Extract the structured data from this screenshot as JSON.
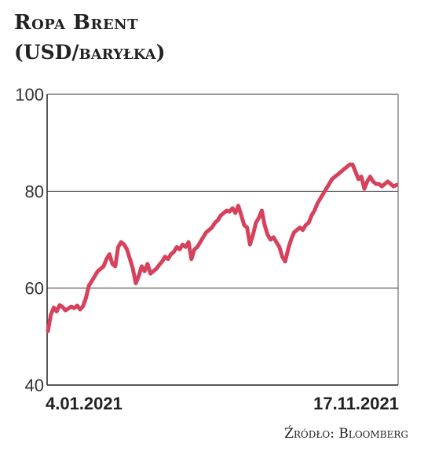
{
  "chart_data": {
    "type": "line",
    "title": "Ropa Brent",
    "subtitle": "(USD/baryłka)",
    "source": "Źródło: Bloomberg",
    "ylim": [
      40,
      100
    ],
    "y_ticks": [
      "100",
      "80",
      "60",
      "40"
    ],
    "x_tick_labels": [
      "4.01.2021",
      "17.11.2021"
    ],
    "x_range": [
      "2021-01-04",
      "2021-11-17"
    ],
    "grid": "horizontal",
    "line_color": "#d6415c",
    "series": [
      {
        "values": [
          [
            0,
            51.1
          ],
          [
            3,
            54.5
          ],
          [
            6,
            56.0
          ],
          [
            9,
            55.2
          ],
          [
            12,
            56.5
          ],
          [
            15,
            56.1
          ],
          [
            18,
            55.4
          ],
          [
            21,
            55.8
          ],
          [
            24,
            56.2
          ],
          [
            27,
            55.9
          ],
          [
            30,
            56.4
          ],
          [
            33,
            55.6
          ],
          [
            36,
            56.3
          ],
          [
            39,
            58.0
          ],
          [
            42,
            60.5
          ],
          [
            45,
            61.5
          ],
          [
            48,
            62.5
          ],
          [
            51,
            63.5
          ],
          [
            54,
            64.0
          ],
          [
            57,
            64.5
          ],
          [
            60,
            66.0
          ],
          [
            63,
            67.0
          ],
          [
            66,
            65.0
          ],
          [
            69,
            64.5
          ],
          [
            72,
            68.5
          ],
          [
            75,
            69.5
          ],
          [
            78,
            69.0
          ],
          [
            81,
            68.0
          ],
          [
            84,
            66.0
          ],
          [
            87,
            64.0
          ],
          [
            90,
            61.0
          ],
          [
            93,
            62.5
          ],
          [
            96,
            64.5
          ],
          [
            99,
            63.5
          ],
          [
            102,
            65.0
          ],
          [
            105,
            63.0
          ],
          [
            108,
            63.5
          ],
          [
            111,
            64.0
          ],
          [
            114,
            64.8
          ],
          [
            117,
            65.5
          ],
          [
            120,
            66.5
          ],
          [
            123,
            66.0
          ],
          [
            126,
            67.0
          ],
          [
            129,
            67.5
          ],
          [
            132,
            68.5
          ],
          [
            135,
            68.0
          ],
          [
            138,
            69.0
          ],
          [
            141,
            68.5
          ],
          [
            144,
            69.5
          ],
          [
            147,
            66.0
          ],
          [
            150,
            68.0
          ],
          [
            153,
            68.5
          ],
          [
            156,
            69.5
          ],
          [
            159,
            70.5
          ],
          [
            162,
            71.5
          ],
          [
            165,
            72.0
          ],
          [
            168,
            72.5
          ],
          [
            171,
            73.5
          ],
          [
            174,
            74.0
          ],
          [
            177,
            75.0
          ],
          [
            180,
            75.5
          ],
          [
            183,
            76.0
          ],
          [
            186,
            75.8
          ],
          [
            189,
            76.5
          ],
          [
            192,
            75.5
          ],
          [
            195,
            77.0
          ],
          [
            198,
            75.0
          ],
          [
            201,
            73.0
          ],
          [
            204,
            72.5
          ],
          [
            207,
            69.0
          ],
          [
            210,
            71.0
          ],
          [
            213,
            73.5
          ],
          [
            216,
            74.5
          ],
          [
            219,
            76.0
          ],
          [
            222,
            73.0
          ],
          [
            225,
            71.0
          ],
          [
            228,
            70.0
          ],
          [
            231,
            70.5
          ],
          [
            234,
            69.5
          ],
          [
            237,
            68.5
          ],
          [
            240,
            66.5
          ],
          [
            243,
            65.5
          ],
          [
            246,
            68.0
          ],
          [
            249,
            70.0
          ],
          [
            252,
            71.5
          ],
          [
            255,
            72.0
          ],
          [
            258,
            72.5
          ],
          [
            261,
            72.0
          ],
          [
            264,
            73.0
          ],
          [
            267,
            73.5
          ],
          [
            270,
            75.0
          ],
          [
            273,
            76.0
          ],
          [
            276,
            77.5
          ],
          [
            279,
            78.5
          ],
          [
            282,
            79.5
          ],
          [
            285,
            80.5
          ],
          [
            288,
            81.5
          ],
          [
            291,
            82.5
          ],
          [
            294,
            83.0
          ],
          [
            297,
            83.5
          ],
          [
            300,
            84.0
          ],
          [
            303,
            84.5
          ],
          [
            306,
            85.0
          ],
          [
            309,
            85.5
          ],
          [
            312,
            85.5
          ],
          [
            315,
            84.0
          ],
          [
            318,
            82.5
          ],
          [
            321,
            83.0
          ],
          [
            324,
            80.5
          ],
          [
            327,
            82.0
          ],
          [
            330,
            83.0
          ],
          [
            333,
            82.0
          ],
          [
            336,
            81.5
          ],
          [
            339,
            81.5
          ],
          [
            342,
            81.0
          ],
          [
            345,
            81.5
          ],
          [
            348,
            82.0
          ],
          [
            351,
            81.5
          ],
          [
            354,
            81.0
          ],
          [
            357,
            81.3
          ]
        ]
      }
    ]
  }
}
